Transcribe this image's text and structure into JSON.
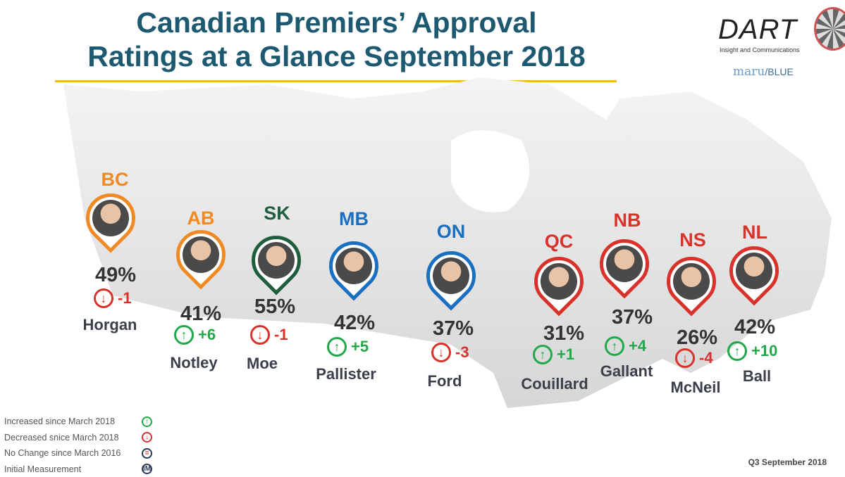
{
  "title": {
    "line1": "Canadian Premiers’ Approval",
    "line2": "Ratings at a Glance September 2018"
  },
  "logo": {
    "dart": "DART",
    "tagline": "Insight and Communications",
    "maru": "maru",
    "blue": "/BLUE"
  },
  "colors": {
    "orange": "#f08a24",
    "green": "#1e5e3c",
    "blue": "#1a6fc0",
    "red": "#d8322a",
    "up": "#22a84a",
    "down": "#d8322a"
  },
  "premiers": [
    {
      "province": "BC",
      "approval": "49%",
      "change": "-1",
      "direction": "down",
      "name": "Horgan",
      "color": "#f08a24"
    },
    {
      "province": "AB",
      "approval": "41%",
      "change": "+6",
      "direction": "up",
      "name": "Notley",
      "color": "#f08a24"
    },
    {
      "province": "SK",
      "approval": "55%",
      "change": "-1",
      "direction": "down",
      "name": "Moe",
      "color": "#1e5e3c"
    },
    {
      "province": "MB",
      "approval": "42%",
      "change": "+5",
      "direction": "up",
      "name": "Pallister",
      "color": "#1a6fc0"
    },
    {
      "province": "ON",
      "approval": "37%",
      "change": "-3",
      "direction": "down",
      "name": "Ford",
      "color": "#1a6fc0"
    },
    {
      "province": "QC",
      "approval": "31%",
      "change": "+1",
      "direction": "up",
      "name": "Couillard",
      "color": "#d8322a"
    },
    {
      "province": "NB",
      "approval": "37%",
      "change": "+4",
      "direction": "up",
      "name": "Gallant",
      "color": "#d8322a"
    },
    {
      "province": "NS",
      "approval": "26%",
      "change": "-4",
      "direction": "down",
      "name": "McNeil",
      "color": "#d8322a"
    },
    {
      "province": "NL",
      "approval": "42%",
      "change": "+10",
      "direction": "up",
      "name": "Ball",
      "color": "#d8322a"
    }
  ],
  "legend": [
    {
      "label": "Increased since March 2018",
      "icon": "up-arrow-circle",
      "glyph": "↑",
      "color": "#22a84a"
    },
    {
      "label": "Decreased snice March 2018",
      "icon": "down-arrow-circle",
      "glyph": "↓",
      "color": "#d8322a"
    },
    {
      "label": "No Change since March 2016",
      "icon": "equals-circle",
      "glyph": "=",
      "color": "#2b3a5a"
    },
    {
      "label": "Initial Measurement",
      "icon": "im-circle",
      "glyph": "IM",
      "color": "#2b3a5a"
    }
  ],
  "footer": "Q3 September 2018"
}
